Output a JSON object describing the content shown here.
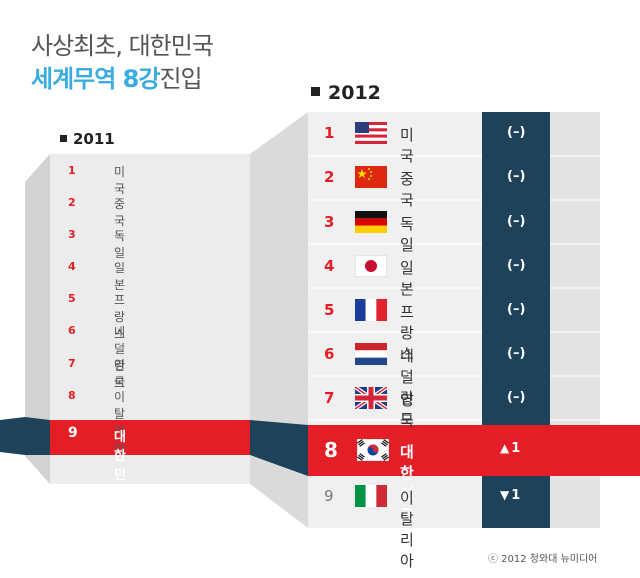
{
  "title": {
    "line1": "사상최초, 대한민국",
    "line2_highlight": "세계무역 8강",
    "line2_rest": "진입"
  },
  "chart_data": [
    {
      "type": "table",
      "year": "2011",
      "rankings": [
        {
          "rank": "1",
          "country": "미국"
        },
        {
          "rank": "2",
          "country": "중국"
        },
        {
          "rank": "3",
          "country": "독일"
        },
        {
          "rank": "4",
          "country": "일본"
        },
        {
          "rank": "5",
          "country": "프랑스"
        },
        {
          "rank": "6",
          "country": "네덜란드"
        },
        {
          "rank": "7",
          "country": "영국"
        },
        {
          "rank": "8",
          "country": "이탈리아"
        },
        {
          "rank": "9",
          "country": "대한민국",
          "highlight": true
        }
      ]
    },
    {
      "type": "table",
      "year": "2012",
      "rankings": [
        {
          "rank": "1",
          "country": "미국",
          "flag": "usa-flag-icon",
          "change": "(–)"
        },
        {
          "rank": "2",
          "country": "중국",
          "flag": "china-flag-icon",
          "change": "(–)"
        },
        {
          "rank": "3",
          "country": "독일",
          "flag": "germany-flag-icon",
          "change": "(–)"
        },
        {
          "rank": "4",
          "country": "일본",
          "flag": "japan-flag-icon",
          "change": "(–)"
        },
        {
          "rank": "5",
          "country": "프랑스",
          "flag": "france-flag-icon",
          "change": "(–)"
        },
        {
          "rank": "6",
          "country": "네덜란드",
          "flag": "netherlands-flag-icon",
          "change": "(–)"
        },
        {
          "rank": "7",
          "country": "영국",
          "flag": "uk-flag-icon",
          "change": "(–)"
        },
        {
          "rank": "8",
          "country": "대한민국",
          "flag": "korea-flag-icon",
          "change": "1",
          "direction": "up",
          "highlight": true
        },
        {
          "rank": "9",
          "country": "이탈리아",
          "flag": "italy-flag-icon",
          "change": "1",
          "direction": "down"
        }
      ]
    }
  ],
  "colors": {
    "accent_red": "#e41e26",
    "dark_teal": "#1e4259",
    "title_blue": "#3aace0",
    "panel_gray": "#e9e9e9"
  },
  "credit": "ⓒ 2012 청와대 뉴미디어"
}
